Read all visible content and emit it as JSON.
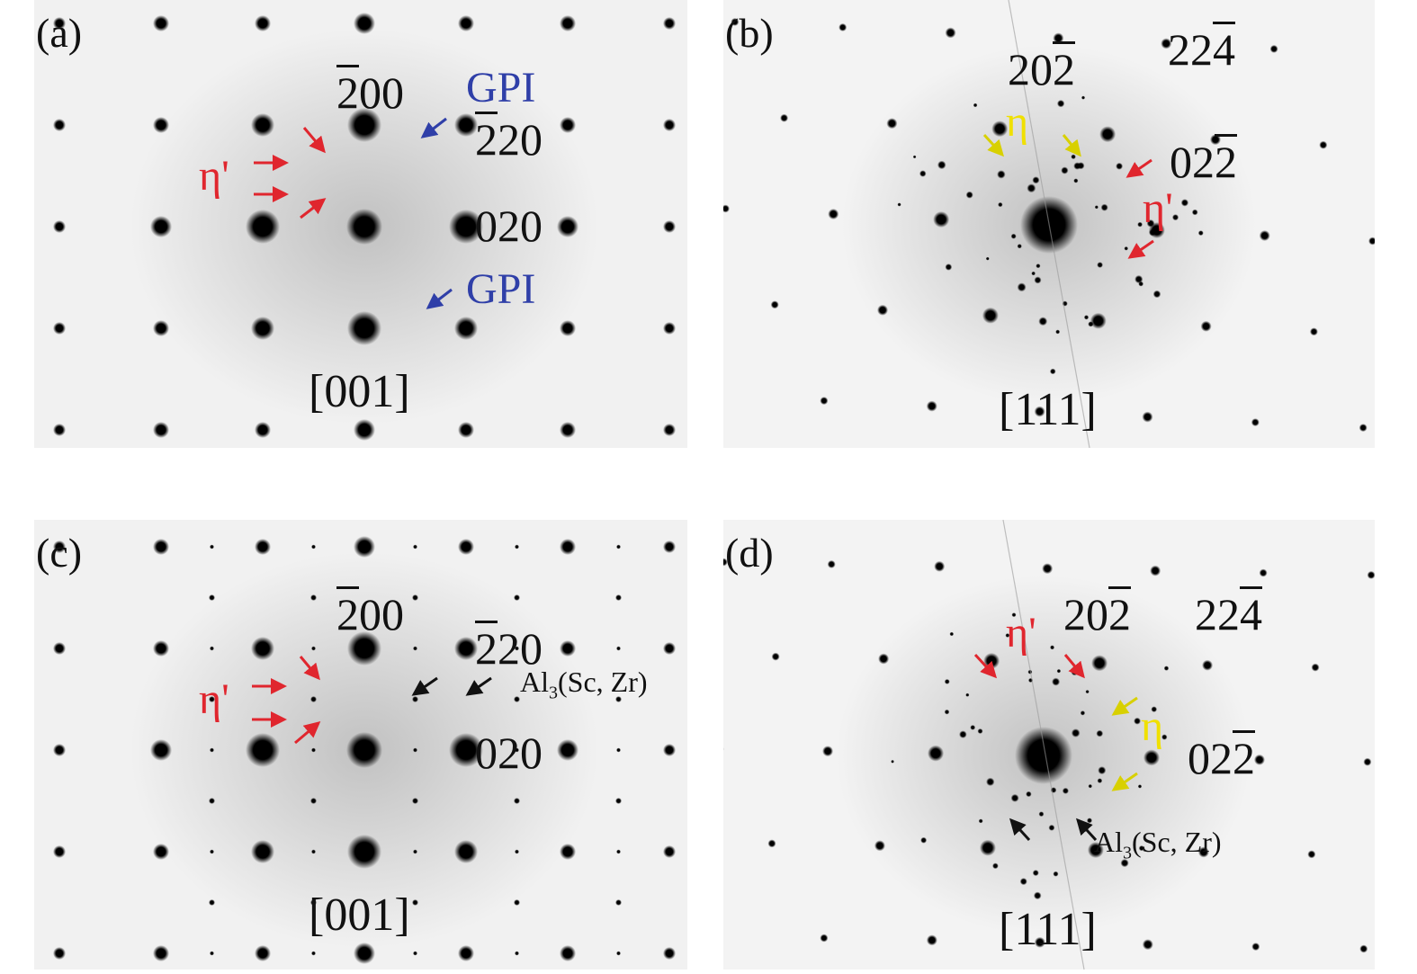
{
  "panels": [
    {
      "id": "a",
      "label": "(a)",
      "zone_axis": "[001]",
      "indices": {
        "h200_bar": "2",
        "h200_rest": "00",
        "h220_bar": "2",
        "h220_rest": "20",
        "h020": "020"
      },
      "phases": {
        "eta_prime": "η'",
        "gpi_1": "GPI",
        "gpi_2": "GPI"
      }
    },
    {
      "id": "b",
      "label": "(b)",
      "zone_axis": "[111]",
      "indices": {
        "i20_lead": "20",
        "i20_bar": "2",
        "i22_lead": "22",
        "i22_bar": "4",
        "i02_lead": "02",
        "i02_bar": "2"
      },
      "phases": {
        "eta": "η",
        "eta_prime": "η'"
      }
    },
    {
      "id": "c",
      "label": "(c)",
      "zone_axis": "[001]",
      "indices": {
        "h200_bar": "2",
        "h200_rest": "00",
        "h220_bar": "2",
        "h220_rest": "20",
        "h020": "020"
      },
      "phases": {
        "eta_prime": "η'",
        "al3_pre": "Al",
        "al3_sub": "3",
        "al3_post": "(Sc, Zr)"
      }
    },
    {
      "id": "d",
      "label": "(d)",
      "zone_axis": "[111]",
      "indices": {
        "i20_lead": "20",
        "i20_bar": "2",
        "i22_lead": "22",
        "i22_bar": "4",
        "i02_lead": "02",
        "i02_bar": "2"
      },
      "phases": {
        "eta_prime": "η'",
        "eta": "η",
        "al3_pre": "Al",
        "al3_sub": "3",
        "al3_post": "(Sc, Zr)"
      }
    }
  ],
  "colors": {
    "eta_prime": "#e0262e",
    "eta": "#f0e000",
    "gpi": "#2f3fa8",
    "al3": "#111111"
  }
}
